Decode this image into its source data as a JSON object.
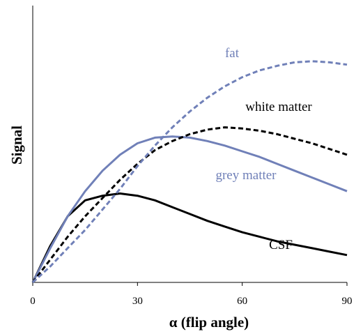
{
  "chart_data": {
    "type": "line",
    "xlabel": "α (flip angle)",
    "ylabel": "Signal",
    "xlim": [
      0,
      90
    ],
    "ylim": [
      0,
      1
    ],
    "x_ticks": [
      "0",
      "30",
      "60",
      "90"
    ],
    "grid": false,
    "legend": "none",
    "series": [
      {
        "name": "fat",
        "color": "#7080b8",
        "dash": "dashed",
        "label_position": "top-center",
        "x": [
          0,
          5,
          10,
          15,
          20,
          25,
          30,
          35,
          40,
          45,
          50,
          55,
          60,
          65,
          70,
          75,
          80,
          85,
          90
        ],
        "y": [
          0,
          0.07,
          0.15,
          0.23,
          0.32,
          0.41,
          0.51,
          0.6,
          0.68,
          0.75,
          0.81,
          0.86,
          0.9,
          0.93,
          0.95,
          0.965,
          0.97,
          0.965,
          0.955
        ]
      },
      {
        "name": "white matter",
        "color": "#000000",
        "dash": "dashed",
        "label_position": "upper-right",
        "x": [
          0,
          5,
          10,
          15,
          20,
          25,
          30,
          35,
          40,
          45,
          50,
          55,
          60,
          65,
          70,
          75,
          80,
          85,
          90
        ],
        "y": [
          0,
          0.1,
          0.2,
          0.29,
          0.37,
          0.45,
          0.52,
          0.58,
          0.62,
          0.65,
          0.67,
          0.68,
          0.675,
          0.665,
          0.65,
          0.63,
          0.61,
          0.585,
          0.56
        ]
      },
      {
        "name": "grey matter",
        "color": "#7080b8",
        "dash": "solid",
        "label_position": "middle-right",
        "x": [
          0,
          5,
          10,
          15,
          20,
          25,
          30,
          35,
          40,
          45,
          50,
          55,
          60,
          65,
          70,
          75,
          80,
          85,
          90
        ],
        "y": [
          0,
          0.15,
          0.29,
          0.4,
          0.49,
          0.56,
          0.61,
          0.635,
          0.64,
          0.635,
          0.62,
          0.6,
          0.575,
          0.55,
          0.52,
          0.49,
          0.46,
          0.43,
          0.4
        ]
      },
      {
        "name": "CSF",
        "color": "#000000",
        "dash": "solid",
        "label_position": "lower-right",
        "x": [
          0,
          5,
          10,
          15,
          20,
          25,
          30,
          35,
          40,
          45,
          50,
          55,
          60,
          65,
          70,
          75,
          80,
          85,
          90
        ],
        "y": [
          0,
          0.16,
          0.29,
          0.36,
          0.38,
          0.39,
          0.38,
          0.36,
          0.33,
          0.3,
          0.27,
          0.245,
          0.22,
          0.2,
          0.18,
          0.165,
          0.15,
          0.135,
          0.12
        ]
      }
    ]
  }
}
